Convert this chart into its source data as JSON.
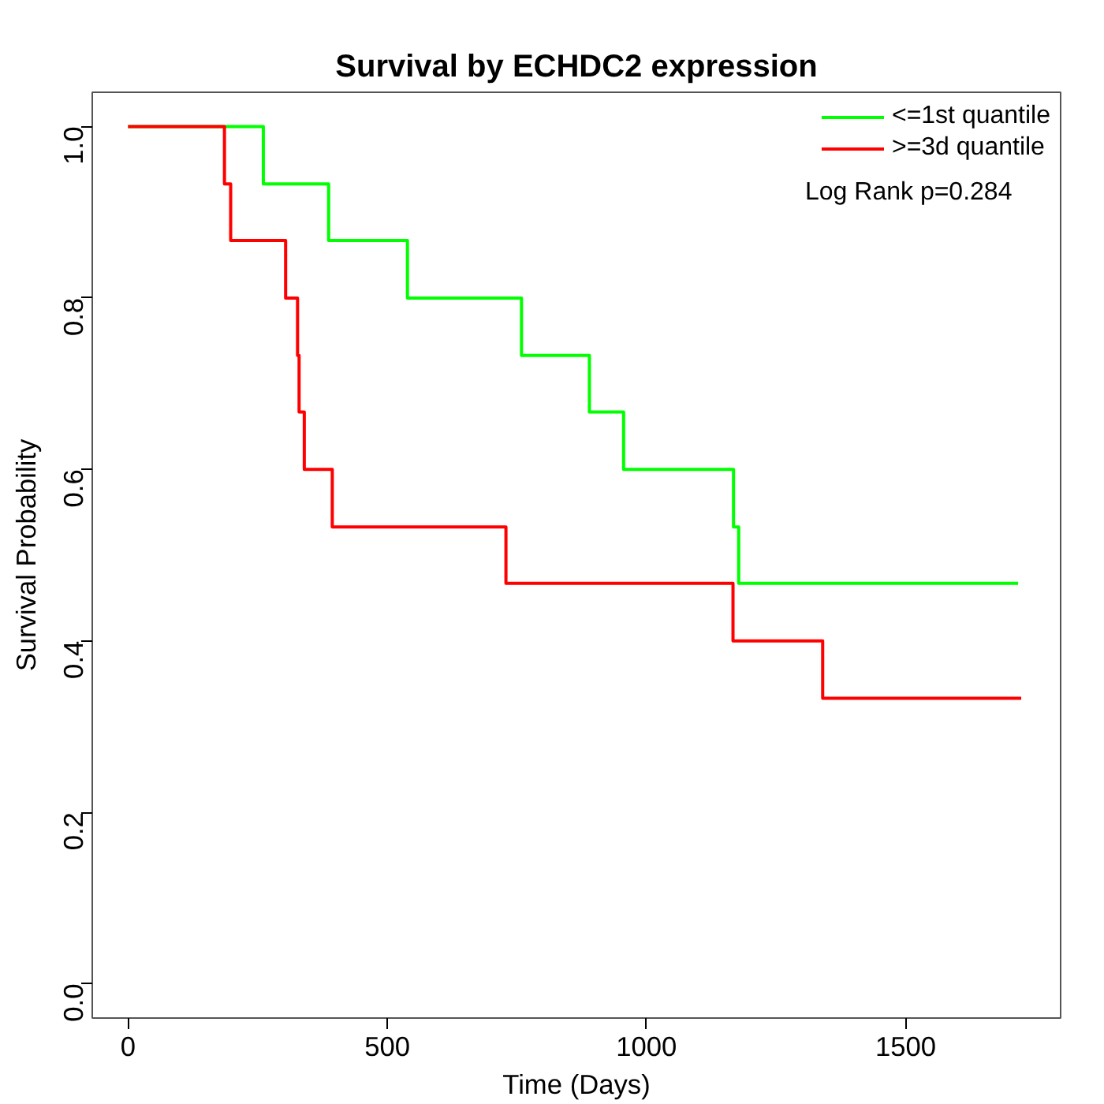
{
  "chart_data": {
    "type": "step",
    "title": "Survival by ECHDC2 expression",
    "xlabel": "Time (Days)",
    "ylabel": "Survival Probability",
    "xlim": [
      -69,
      1799
    ],
    "xticks": [
      0,
      500,
      1000,
      1500
    ],
    "ylim": [
      -0.04,
      1.04
    ],
    "yticks": [
      {
        "value": 0,
        "label": "0.0"
      },
      {
        "value": 0.2,
        "label": "0.2"
      },
      {
        "value": 0.4,
        "label": "0.4"
      },
      {
        "value": 0.6,
        "label": "0.6"
      },
      {
        "value": 0.8,
        "label": "0.8"
      },
      {
        "value": 1,
        "label": "1.0"
      }
    ],
    "grid": false,
    "legend": "top right",
    "annotations": [
      "Log Rank p=0.284"
    ],
    "series": [
      {
        "name": "<=1st quantile",
        "color": "#00ff00",
        "x": [
          0,
          261,
          387,
          539,
          759,
          890,
          956,
          1168,
          1178,
          1717
        ],
        "values": [
          1,
          0.933,
          0.867,
          0.8,
          0.733,
          0.667,
          0.6,
          0.533,
          0.467,
          0.467
        ]
      },
      {
        "name": ">=3d quantile",
        "color": "#ff0000",
        "x": [
          0,
          186,
          198,
          304,
          327,
          330,
          340,
          394,
          729,
          1167,
          1340,
          1723
        ],
        "values": [
          1,
          0.933,
          0.867,
          0.8,
          0.733,
          0.667,
          0.6,
          0.533,
          0.467,
          0.4,
          0.333,
          0.333
        ]
      }
    ]
  }
}
